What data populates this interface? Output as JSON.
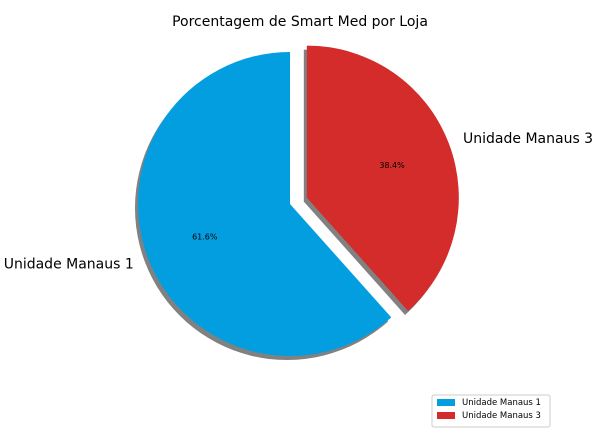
{
  "chart_data": {
    "type": "pie",
    "title": "Porcentagem de Smart Med por Loja",
    "categories": [
      "Unidade Manaus 1",
      "Unidade Manaus 3"
    ],
    "values": [
      61.6,
      38.4
    ],
    "labels": [
      "61.6%",
      "38.4%"
    ],
    "colors": [
      "#039ee0",
      "#d42b2b"
    ],
    "explode": [
      0,
      1
    ],
    "shadow": true,
    "start_angle": "90 degrees, counterclockwise",
    "legend": {
      "placement": "lower-right",
      "entries": [
        "Unidade Manaus 1",
        "Unidade Manaus 3"
      ]
    }
  }
}
